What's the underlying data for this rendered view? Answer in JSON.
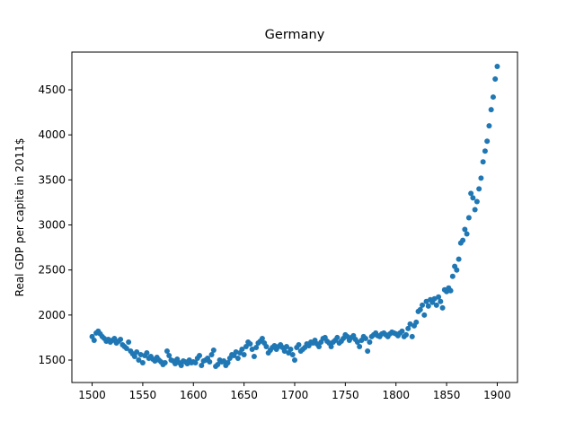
{
  "chart_data": {
    "type": "scatter",
    "title": "Germany",
    "y_label": "Real GDP per capita in 2011$",
    "color": "#1f77b4",
    "xlim": [
      1480,
      1920
    ],
    "ylim": [
      1251,
      4919
    ],
    "xticks": [
      1500,
      1550,
      1600,
      1650,
      1700,
      1750,
      1800,
      1850,
      1900
    ],
    "yticks": [
      1500,
      2000,
      2500,
      3000,
      3500,
      4000,
      4500
    ],
    "x": [
      1500,
      1502,
      1504,
      1506,
      1508,
      1510,
      1512,
      1514,
      1516,
      1518,
      1520,
      1522,
      1524,
      1526,
      1528,
      1530,
      1532,
      1534,
      1536,
      1538,
      1540,
      1542,
      1544,
      1546,
      1548,
      1550,
      1552,
      1554,
      1556,
      1558,
      1560,
      1562,
      1564,
      1566,
      1568,
      1570,
      1572,
      1574,
      1576,
      1578,
      1580,
      1582,
      1584,
      1586,
      1588,
      1590,
      1592,
      1594,
      1596,
      1598,
      1600,
      1602,
      1604,
      1606,
      1608,
      1610,
      1612,
      1614,
      1616,
      1618,
      1620,
      1622,
      1624,
      1626,
      1628,
      1630,
      1632,
      1634,
      1636,
      1638,
      1640,
      1642,
      1644,
      1646,
      1648,
      1650,
      1652,
      1654,
      1656,
      1658,
      1660,
      1662,
      1664,
      1666,
      1668,
      1670,
      1672,
      1674,
      1676,
      1678,
      1680,
      1682,
      1684,
      1686,
      1688,
      1690,
      1692,
      1694,
      1696,
      1698,
      1700,
      1702,
      1704,
      1706,
      1708,
      1710,
      1712,
      1714,
      1716,
      1718,
      1720,
      1722,
      1724,
      1726,
      1728,
      1730,
      1732,
      1734,
      1736,
      1738,
      1740,
      1742,
      1744,
      1746,
      1748,
      1750,
      1752,
      1754,
      1756,
      1758,
      1760,
      1762,
      1764,
      1766,
      1768,
      1770,
      1772,
      1774,
      1776,
      1778,
      1780,
      1782,
      1784,
      1786,
      1788,
      1790,
      1792,
      1794,
      1796,
      1798,
      1800,
      1802,
      1804,
      1806,
      1808,
      1810,
      1812,
      1814,
      1816,
      1818,
      1820,
      1822,
      1824,
      1826,
      1828,
      1830,
      1832,
      1834,
      1836,
      1838,
      1840,
      1842,
      1844,
      1846,
      1848,
      1850,
      1852,
      1854,
      1856,
      1858,
      1860,
      1862,
      1864,
      1866,
      1868,
      1870,
      1872,
      1874,
      1876,
      1878,
      1880,
      1882,
      1884,
      1886,
      1888,
      1890,
      1892,
      1894,
      1896,
      1898,
      1900
    ],
    "values": [
      1760,
      1720,
      1800,
      1820,
      1790,
      1760,
      1740,
      1710,
      1730,
      1700,
      1720,
      1740,
      1690,
      1710,
      1730,
      1670,
      1650,
      1630,
      1700,
      1600,
      1570,
      1540,
      1590,
      1500,
      1560,
      1470,
      1550,
      1580,
      1520,
      1540,
      1510,
      1490,
      1530,
      1500,
      1480,
      1450,
      1470,
      1600,
      1550,
      1500,
      1490,
      1460,
      1510,
      1470,
      1440,
      1490,
      1480,
      1460,
      1500,
      1470,
      1480,
      1470,
      1520,
      1550,
      1440,
      1490,
      1500,
      1520,
      1480,
      1560,
      1610,
      1430,
      1450,
      1500,
      1480,
      1490,
      1440,
      1470,
      1520,
      1560,
      1550,
      1590,
      1520,
      1580,
      1620,
      1560,
      1650,
      1700,
      1680,
      1620,
      1540,
      1640,
      1690,
      1710,
      1740,
      1690,
      1650,
      1580,
      1610,
      1640,
      1660,
      1620,
      1650,
      1670,
      1640,
      1600,
      1650,
      1580,
      1620,
      1560,
      1500,
      1640,
      1670,
      1600,
      1620,
      1640,
      1680,
      1660,
      1700,
      1690,
      1720,
      1680,
      1650,
      1700,
      1740,
      1750,
      1710,
      1690,
      1650,
      1700,
      1720,
      1750,
      1690,
      1710,
      1740,
      1780,
      1760,
      1720,
      1750,
      1770,
      1730,
      1700,
      1650,
      1720,
      1760,
      1740,
      1600,
      1700,
      1760,
      1780,
      1800,
      1770,
      1760,
      1790,
      1800,
      1780,
      1760,
      1790,
      1810,
      1800,
      1790,
      1770,
      1800,
      1820,
      1760,
      1780,
      1850,
      1900,
      1760,
      1880,
      1920,
      2040,
      2060,
      2110,
      2000,
      2150,
      2100,
      2170,
      2140,
      2180,
      2110,
      2200,
      2150,
      2080,
      2280,
      2260,
      2300,
      2270,
      2430,
      2540,
      2500,
      2620,
      2800,
      2830,
      2950,
      2900,
      3080,
      3350,
      3300,
      3170,
      3260,
      3400,
      3520,
      3700,
      3820,
      3930,
      4100,
      4280,
      4420,
      4620,
      4760
    ]
  }
}
